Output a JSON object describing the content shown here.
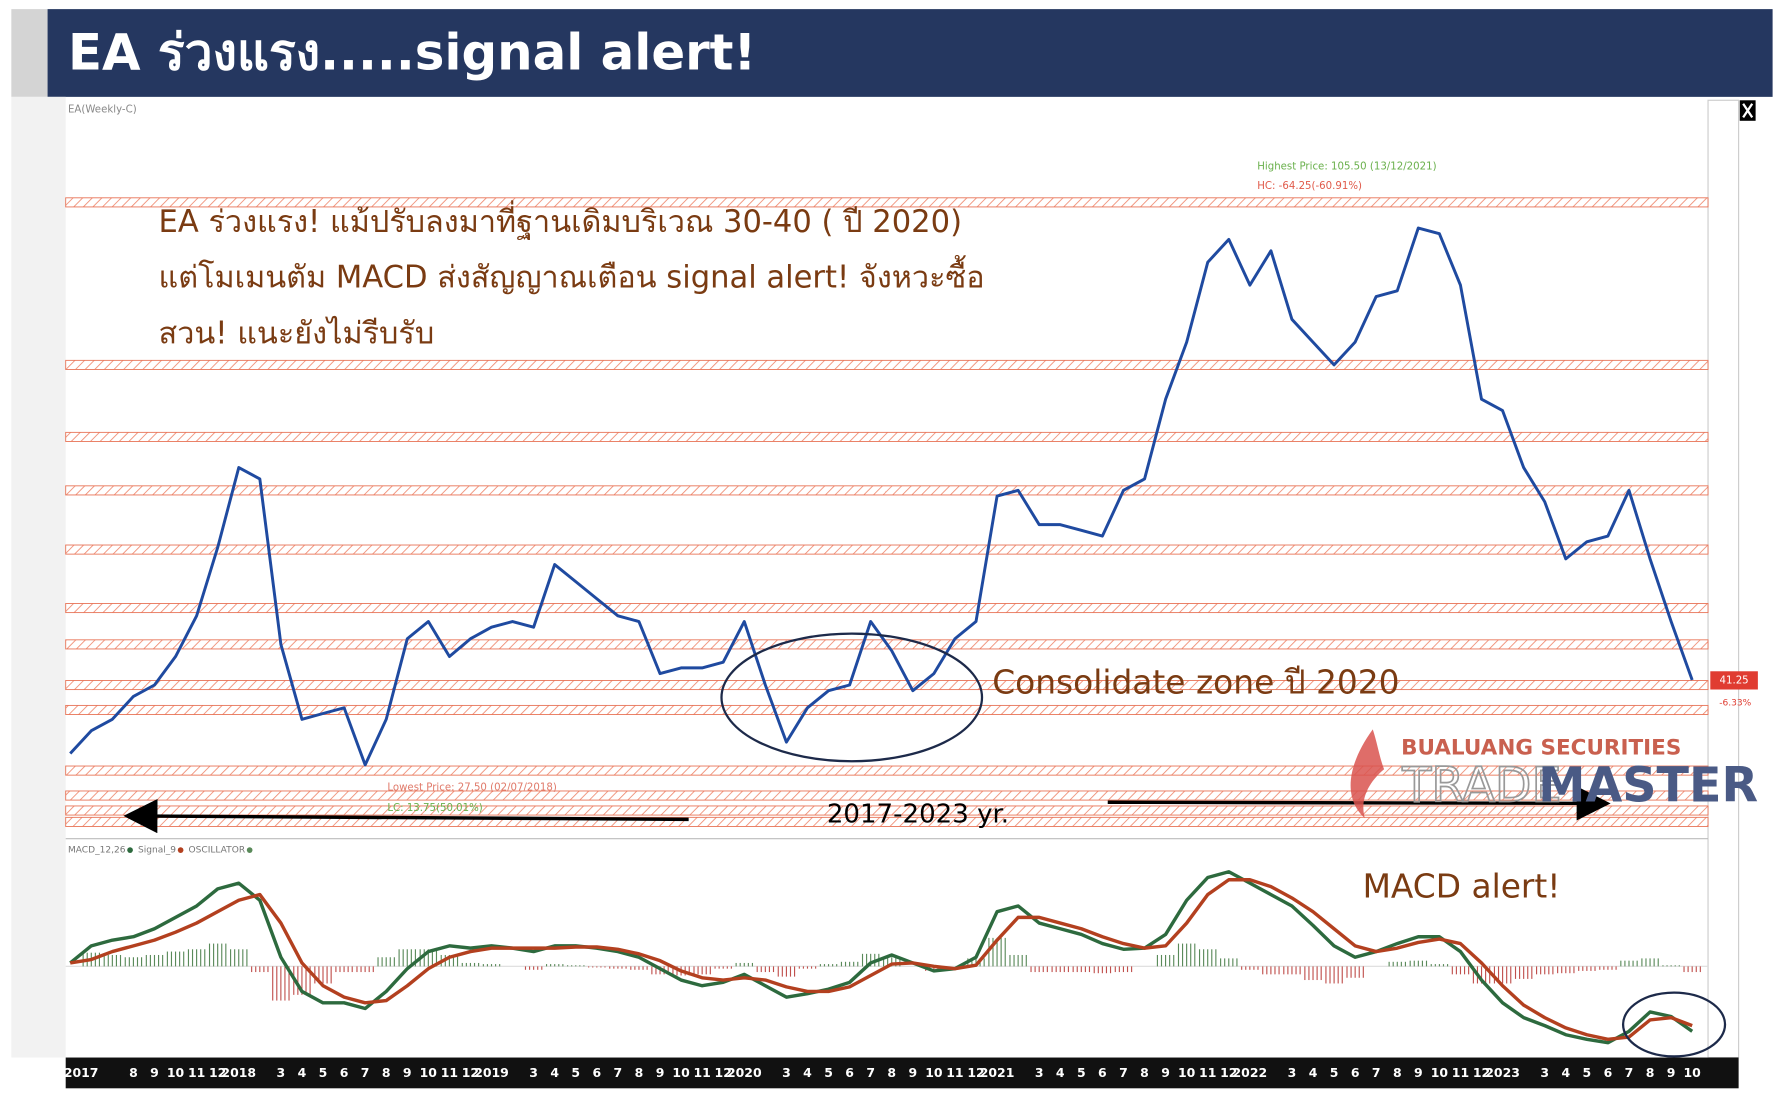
{
  "header": {
    "title": "EA ร่วงแรง.....signal alert!"
  },
  "logo": {
    "line1": "BUALUANG SECURITIES",
    "trade": "TRADE",
    "master": "MASTER"
  },
  "chart_data": [
    {
      "type": "line",
      "title": "EA(Weekly-C)",
      "ylim": [
        20,
        121.5
      ],
      "series": [
        {
          "name": "EA",
          "color": "#1f4aa0",
          "values": [
            31.0,
            34.2,
            35.8,
            39.0,
            40.6,
            44.6,
            50.3,
            59.9,
            71.1,
            69.5,
            46.3,
            35.8,
            36.6,
            37.4,
            29.4,
            35.8,
            47.1,
            49.5,
            44.6,
            47.1,
            48.7,
            49.5,
            48.7,
            57.5,
            55.1,
            52.7,
            50.3,
            49.5,
            42.2,
            43.0,
            43.0,
            43.8,
            49.5,
            40.6,
            32.6,
            37.4,
            39.8,
            40.6,
            49.5,
            45.4,
            39.8,
            42.2,
            47.1,
            49.5,
            67.1,
            67.9,
            63.1,
            63.1,
            62.3,
            61.5,
            67.9,
            69.5,
            80.7,
            88.7,
            99.9,
            103.1,
            96.7,
            101.5,
            91.9,
            88.7,
            85.5,
            88.7,
            95.1,
            95.9,
            104.7,
            103.9,
            96.7,
            80.7,
            79.1,
            71.1,
            66.3,
            58.3,
            60.7,
            61.5,
            67.9,
            58.3,
            49.5,
            41.3
          ]
        }
      ],
      "levels": [
        108.3,
        85.5,
        75.4,
        67.9,
        59.6,
        51.4,
        46.3,
        40.6,
        37.1,
        28.6,
        25.1,
        23.0,
        21.4
      ],
      "level_color": "#e8765a",
      "last_price": 41.25,
      "last_change": "-6.33%",
      "annotations": {
        "note_lines": [
          "EA ร่วงแรง! แม้ปรับลงมาที่ฐานเดิมบริเวณ 30-40 ( ปี 2020)",
          "แต่โมเมนตัม MACD ส่งสัญญาณเตือน signal alert! จังหวะซื้อ",
          "สวน! แนะยังไม่รีบรับ"
        ],
        "consolidate": "Consolidate zone ปี 2020",
        "period": "2017-2023 yr.",
        "highest": "Highest Price: 105.50 (13/12/2021)",
        "hc": "HC: -64.25(-60.91%)",
        "lowest": "Lowest Price: 27.50 (02/07/2018)",
        "lc": "LC: 13.75(50.01%)"
      }
    },
    {
      "type": "macd",
      "categories": [
        "05/2017",
        null,
        null,
        "8",
        "9",
        "10",
        "11",
        "12",
        "2018",
        null,
        "3",
        "4",
        "5",
        "6",
        "7",
        "8",
        "9",
        "10",
        "11",
        "12",
        "2019",
        null,
        "3",
        "4",
        "5",
        "6",
        "7",
        "8",
        "9",
        "10",
        "11",
        "12",
        "2020",
        null,
        "3",
        "4",
        "5",
        "6",
        "7",
        "8",
        "9",
        "10",
        "11",
        "12",
        "2021",
        null,
        "3",
        "4",
        "5",
        "6",
        "7",
        "8",
        "9",
        "10",
        "11",
        "12",
        "2022",
        null,
        "3",
        "4",
        "5",
        "6",
        "7",
        "8",
        "9",
        "10",
        "11",
        "12",
        "2023",
        null,
        "3",
        "4",
        "5",
        "6",
        "7",
        "8",
        "9",
        "10"
      ],
      "ylim": [
        -8,
        9
      ],
      "series": [
        {
          "name": "MACD_12,26",
          "color": "#2d6a3e",
          "values": [
            0.3,
            1.8,
            2.3,
            2.6,
            3.3,
            4.3,
            5.3,
            6.8,
            7.3,
            5.8,
            0.8,
            -2.2,
            -3.2,
            -3.2,
            -3.7,
            -2.2,
            -0.2,
            1.3,
            1.8,
            1.6,
            1.8,
            1.6,
            1.3,
            1.8,
            1.8,
            1.6,
            1.3,
            0.8,
            -0.2,
            -1.2,
            -1.7,
            -1.4,
            -0.7,
            -1.7,
            -2.7,
            -2.4,
            -2.0,
            -1.4,
            0.3,
            1.0,
            0.3,
            -0.4,
            -0.2,
            0.8,
            4.8,
            5.3,
            3.8,
            3.3,
            2.8,
            2.0,
            1.5,
            1.6,
            2.8,
            5.8,
            7.8,
            8.3,
            7.3,
            6.3,
            5.3,
            3.6,
            1.8,
            0.8,
            1.3,
            2.0,
            2.6,
            2.6,
            1.3,
            -1.2,
            -3.2,
            -4.5,
            -5.2,
            -6.0,
            -6.4,
            -6.7,
            -5.7,
            -4.0,
            -4.4,
            -5.7
          ]
        },
        {
          "name": "Signal_9",
          "color": "#b3401f",
          "values": [
            0.3,
            0.6,
            1.3,
            1.8,
            2.3,
            3.0,
            3.8,
            4.8,
            5.8,
            6.3,
            3.8,
            0.3,
            -1.7,
            -2.7,
            -3.2,
            -3.0,
            -1.7,
            -0.2,
            0.8,
            1.3,
            1.6,
            1.6,
            1.6,
            1.6,
            1.7,
            1.7,
            1.5,
            1.1,
            0.5,
            -0.4,
            -1.0,
            -1.2,
            -1.0,
            -1.2,
            -1.8,
            -2.2,
            -2.2,
            -1.8,
            -0.8,
            0.2,
            0.3,
            0.0,
            -0.2,
            0.1,
            2.3,
            4.3,
            4.3,
            3.8,
            3.3,
            2.6,
            2.0,
            1.6,
            1.8,
            3.8,
            6.3,
            7.6,
            7.6,
            7.0,
            6.0,
            4.8,
            3.3,
            1.8,
            1.3,
            1.6,
            2.1,
            2.4,
            2.0,
            0.3,
            -1.7,
            -3.4,
            -4.5,
            -5.4,
            -6.0,
            -6.4,
            -6.2,
            -4.7,
            -4.5,
            -5.2
          ]
        },
        {
          "name": "OSCILLATOR",
          "color": "#5a8a5a",
          "negative_color": "#c0504d",
          "values": [
            0.0,
            1.2,
            1.0,
            0.8,
            1.0,
            1.3,
            1.5,
            2.0,
            1.5,
            -0.5,
            -3.0,
            -2.5,
            -1.5,
            -0.5,
            -0.5,
            0.8,
            1.5,
            1.5,
            1.0,
            0.3,
            0.2,
            0.0,
            -0.3,
            0.2,
            0.1,
            -0.1,
            -0.2,
            -0.3,
            -0.7,
            -0.8,
            -0.7,
            -0.2,
            0.3,
            -0.5,
            -0.9,
            -0.2,
            0.2,
            0.4,
            1.1,
            0.8,
            0.0,
            -0.4,
            0.0,
            0.7,
            2.5,
            1.0,
            -0.5,
            -0.5,
            -0.5,
            -0.6,
            -0.5,
            0.0,
            1.0,
            2.0,
            1.5,
            0.7,
            -0.3,
            -0.7,
            -0.7,
            -1.2,
            -1.5,
            -1.0,
            0.0,
            0.4,
            0.5,
            0.2,
            -0.7,
            -1.5,
            -1.5,
            -1.1,
            -0.7,
            -0.6,
            -0.4,
            -0.3,
            0.5,
            0.7,
            0.1,
            -0.5
          ]
        }
      ],
      "annotations": {
        "alert": "MACD alert!"
      }
    }
  ]
}
